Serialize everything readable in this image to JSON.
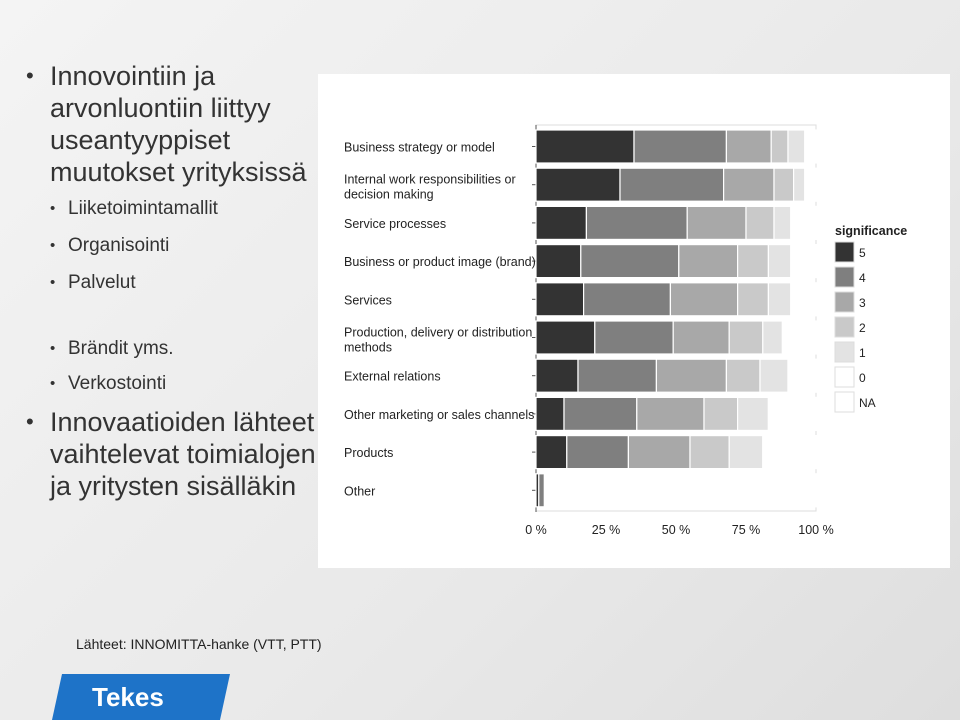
{
  "slide": {
    "bullets": [
      {
        "text": "Innovointiin ja arvonluontiin liittyy useantyyppiset muutokset yrityksissä",
        "sub": [
          "Liiketoimintamallit",
          "Organisointi",
          "Palvelut",
          "Brändit yms.",
          "Verkostointi"
        ]
      },
      {
        "text": "Innovaatioiden lähteet vaihtelevat toimialojen ja yritysten sisälläkin",
        "sub": []
      }
    ],
    "sources": "Lähteet: INNOMITTA-hanke (VTT, PTT)",
    "logo_text": "Tekes",
    "logo_color": "#1e73c8"
  },
  "chart_data": {
    "type": "bar",
    "orientation": "horizontal",
    "stacked": true,
    "percent": true,
    "categories": [
      "Business strategy or model",
      "Internal work responsibilities or decision making",
      "Service processes",
      "Business or product image (brand)",
      "Services",
      "Production, delivery or distribution methods",
      "External relations",
      "Other marketing or sales channels",
      "Products",
      "Other"
    ],
    "category_lines": [
      [
        "Business strategy or model"
      ],
      [
        "Internal work responsibilities or",
        "decision making"
      ],
      [
        "Service processes"
      ],
      [
        "Business or product image (brand)"
      ],
      [
        "Services"
      ],
      [
        "Production, delivery or distribution",
        "methods"
      ],
      [
        "External relations"
      ],
      [
        "Other marketing or sales channels"
      ],
      [
        "Products"
      ],
      [
        "Other"
      ]
    ],
    "series": [
      {
        "name": "5",
        "color": "#333333",
        "values": [
          35,
          30,
          18,
          16,
          17,
          21,
          15,
          10,
          11,
          1
        ]
      },
      {
        "name": "4",
        "color": "#7f7f7f",
        "values": [
          33,
          37,
          36,
          35,
          31,
          28,
          28,
          26,
          22,
          2
        ]
      },
      {
        "name": "3",
        "color": "#a8a8a8",
        "values": [
          16,
          18,
          21,
          21,
          24,
          20,
          25,
          24,
          22,
          0
        ]
      },
      {
        "name": "2",
        "color": "#c9c9c9",
        "values": [
          6,
          7,
          10,
          11,
          11,
          12,
          12,
          12,
          14,
          0
        ]
      },
      {
        "name": "1",
        "color": "#e3e3e3",
        "values": [
          6,
          4,
          6,
          8,
          8,
          7,
          10,
          11,
          12,
          0
        ]
      },
      {
        "name": "0",
        "color": "#ffffff",
        "values": [
          4,
          3,
          3,
          9,
          9,
          12,
          10,
          17,
          19,
          97
        ]
      },
      {
        "name": "NA",
        "color": "#ffffff",
        "values": [
          0,
          1,
          6,
          0,
          0,
          0,
          0,
          0,
          0,
          0
        ]
      }
    ],
    "xticks": [
      "0 %",
      "25 %",
      "50 %",
      "75 %",
      "100 %"
    ],
    "xlim": [
      0,
      100
    ],
    "legend_title": "significance",
    "legend_position": "right"
  }
}
